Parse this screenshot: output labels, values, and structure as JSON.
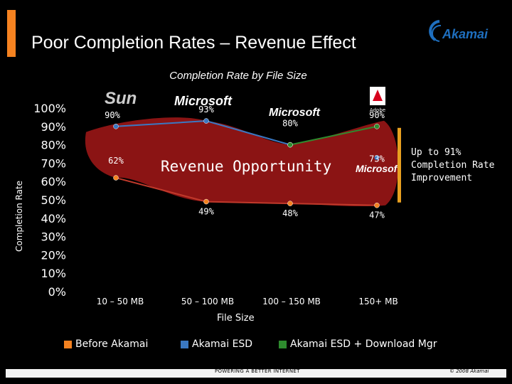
{
  "header": {
    "title": "Poor Completion Rates – Revenue Effect",
    "logo_text": "Akamai",
    "accent": "#F58220"
  },
  "annotation": [
    "Up to 91%",
    "Completion Rate",
    "Improvement"
  ],
  "footer": {
    "left": "POWERING A BETTER INTERNET",
    "right": "© 2008 Akamai"
  },
  "legend": [
    {
      "label": "Before Akamai",
      "color": "#C0392B"
    },
    {
      "label": "Akamai ESD",
      "color": "#3A78C2"
    },
    {
      "label": "Akamai ESD + Download Mgr",
      "color": "#2E8B2E"
    }
  ],
  "chart_data": {
    "type": "line",
    "title": "Completion Rate by File Size",
    "xlabel": "File Size",
    "ylabel": "Completion Rate",
    "ylim": [
      0,
      100
    ],
    "y_ticks": [
      "100%",
      "90%",
      "80%",
      "70%",
      "60%",
      "50%",
      "40%",
      "30%",
      "20%",
      "10%",
      "0%"
    ],
    "categories": [
      "10 – 50 MB",
      "50 – 100 MB",
      "100 – 150 MB",
      "150+ MB"
    ],
    "series": [
      {
        "name": "Before Akamai",
        "color": "#C0392B",
        "values": [
          62,
          49,
          48,
          47
        ],
        "labels": [
          "62%",
          "49%",
          "48%",
          "47%"
        ]
      },
      {
        "name": "Akamai ESD",
        "color": "#3A78C2",
        "values": [
          90,
          93,
          80,
          null
        ],
        "labels": [
          "90%",
          "93%",
          "80%",
          ""
        ]
      },
      {
        "name": "Akamai ESD + Download Mgr",
        "color": "#2E8B2E",
        "values": [
          null,
          null,
          80,
          90
        ],
        "labels": [
          "",
          "",
          "",
          "90%"
        ]
      }
    ],
    "extra_point": {
      "category_index": 3,
      "value": 73,
      "label": "73%"
    },
    "region_label": "Revenue Opportunity",
    "vendors": [
      "Sun",
      "Microsoft",
      "Microsoft",
      "Adobe",
      "Microsoft"
    ]
  }
}
